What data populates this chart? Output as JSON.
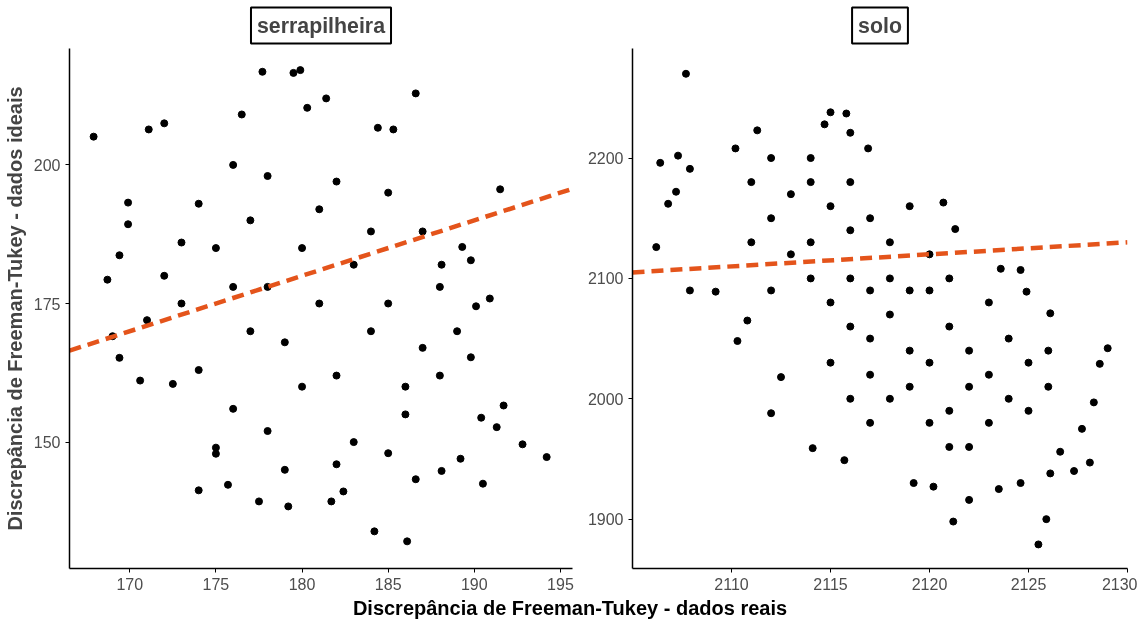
{
  "chart_data": [
    {
      "type": "scatter",
      "title": "serrapilheira",
      "ylabel": "Discrepância de Freeman-Tukey - dados ideais",
      "xlabel": "Discrepância de Freeman-Tukey - dados reais",
      "xlim": [
        166.5,
        195.7
      ],
      "ylim": [
        127.2,
        221
      ],
      "xticks": [
        170,
        175,
        180,
        185,
        190,
        195
      ],
      "yticks": [
        150,
        175,
        200
      ],
      "grid": false,
      "series": [
        {
          "color": "#000000",
          "marker": "circle",
          "x": [
            167.9,
            177.7,
            179.5,
            179.9,
            181.4,
            186.6,
            180.3,
            176.5,
            171.1,
            172.0,
            169.9,
            169.9,
            169.4,
            168.7,
            169.0,
            169.4,
            170.6,
            172.5,
            174.0,
            175.0,
            175.7,
            177.5,
            179.2,
            184.2,
            186.1,
            192.8,
            194.2,
            191.7,
            191.3,
            190.4,
            190.5,
            189.2,
            191.5,
            190.9,
            190.1,
            189.3,
            189.8,
            189.8,
            188.1,
            185.3,
            184.4,
            181.7,
            188.1,
            186.6,
            182.4,
            176,
            178,
            182,
            185,
            174,
            187,
            173,
            188,
            189,
            188,
            186,
            183,
            178,
            176,
            174,
            173,
            175,
            177,
            180,
            181,
            179,
            182,
            184,
            178,
            183,
            180,
            177,
            185,
            176,
            181,
            184,
            179,
            185,
            175,
            172,
            171,
            187,
            182,
            186
          ],
          "values": [
            205.1,
            216.8,
            216.6,
            217.1,
            212,
            212.9,
            210.3,
            209.1,
            206.4,
            207.5,
            193.2,
            189.3,
            183.7,
            179.3,
            169.1,
            165.2,
            161.1,
            160.5,
            141.3,
            147.9,
            142.3,
            139.3,
            138.4,
            133.9,
            132.1,
            149.6,
            147.3,
            156.6,
            152.7,
            154.4,
            142.5,
            147,
            195.6,
            175.9,
            174.5,
            185.2,
            182.8,
            165.3,
            182,
            206.4,
            206.7,
            139.3,
            144.8,
            143.3,
            141.1,
            200,
            198,
            197,
            195,
            193,
            188,
            186,
            178,
            170,
            162,
            155,
            150,
            152,
            156,
            163,
            175,
            185,
            190,
            185,
            175,
            168,
            162,
            170,
            178,
            182,
            160,
            170,
            175,
            178,
            192,
            188,
            145,
            148,
            149,
            180,
            172,
            167,
            146,
            160
          ]
        },
        {
          "type": "line",
          "color": "#e4541b",
          "line_style": "dashed",
          "x": [
            166.5,
            195.7
          ],
          "values": [
            166.5,
            195.7
          ]
        }
      ]
    },
    {
      "type": "scatter",
      "title": "solo",
      "xlim": [
        2105,
        2130
      ],
      "ylim": [
        1859,
        2291
      ],
      "xticks": [
        2110,
        2115,
        2120,
        2125,
        2130
      ],
      "yticks": [
        1900,
        2000,
        2100,
        2200
      ],
      "grid": false,
      "series": [
        {
          "color": "#000000",
          "marker": "circle",
          "x": [
            2107.7,
            2106.2,
            2106.4,
            2107.3,
            2107.2,
            2106.8,
            2107.9,
            2107.9,
            2109.2,
            2112.0,
            2115.0,
            2115.8,
            2114.7,
            2116.9,
            2116.0,
            2111.3,
            2110.2,
            2114.1,
            2115.7,
            2121.2,
            2125.9,
            2125.5,
            2122.0,
            2129.0,
            2128.6,
            2128.3,
            2127.7,
            2128.1,
            2127.3,
            2126.1,
            2124.6,
            2123.6,
            2120.7,
            2124.9,
            2120.2,
            2119.2,
            2123.5,
            2124.6,
            2126.1,
            2126.6,
            2110.3,
            2110.8,
            2112.5,
            2121.3,
            2112,
            2113,
            2114,
            2115,
            2116,
            2117,
            2118,
            2119,
            2120,
            2113,
            2114,
            2115,
            2116,
            2117,
            2118,
            2119,
            2120,
            2121,
            2122,
            2122,
            2123,
            2123,
            2124,
            2124,
            2125,
            2121,
            2120,
            2118,
            2117,
            2116,
            2118,
            2119,
            2121,
            2122,
            2123,
            2125,
            2126,
            2126,
            2112,
            2111,
            2111,
            2112,
            2114,
            2116,
            2114,
            2117,
            2119,
            2120,
            2121,
            2115,
            2116,
            2117
          ],
          "values": [
            2270,
            2126,
            2196,
            2202,
            2172,
            2162,
            2191,
            2090,
            2089,
            1988,
            2238,
            2237,
            2228,
            2208,
            2221,
            2223,
            2208,
            1959,
            1949,
            1898,
            1900,
            1879,
            1916,
            2042,
            2029,
            1997,
            1975,
            1947,
            1940,
            2071,
            2107,
            2108,
            2163,
            2089,
            1927,
            1930,
            1925,
            1930,
            1938,
            1956,
            2048,
            2065,
            2018,
            2141,
            2150,
            2170,
            2180,
            2160,
            2140,
            2150,
            2130,
            2160,
            2120,
            2120,
            2100,
            2080,
            2060,
            2050,
            2070,
            2040,
            2030,
            2060,
            2040,
            2010,
            2080,
            2020,
            2050,
            2000,
            2030,
            1990,
            1980,
            2000,
            2020,
            2100,
            2100,
            2010,
            1960,
            1960,
            1980,
            1990,
            2010,
            2040,
            2090,
            2130,
            2180,
            2200,
            2200,
            2180,
            2130,
            2090,
            2090,
            2090,
            2100,
            2030,
            2000,
            1980
          ]
        },
        {
          "type": "line",
          "color": "#e4541b",
          "line_style": "dashed",
          "x": [
            2105,
            2130
          ],
          "values": [
            2105,
            2130
          ]
        }
      ]
    }
  ]
}
